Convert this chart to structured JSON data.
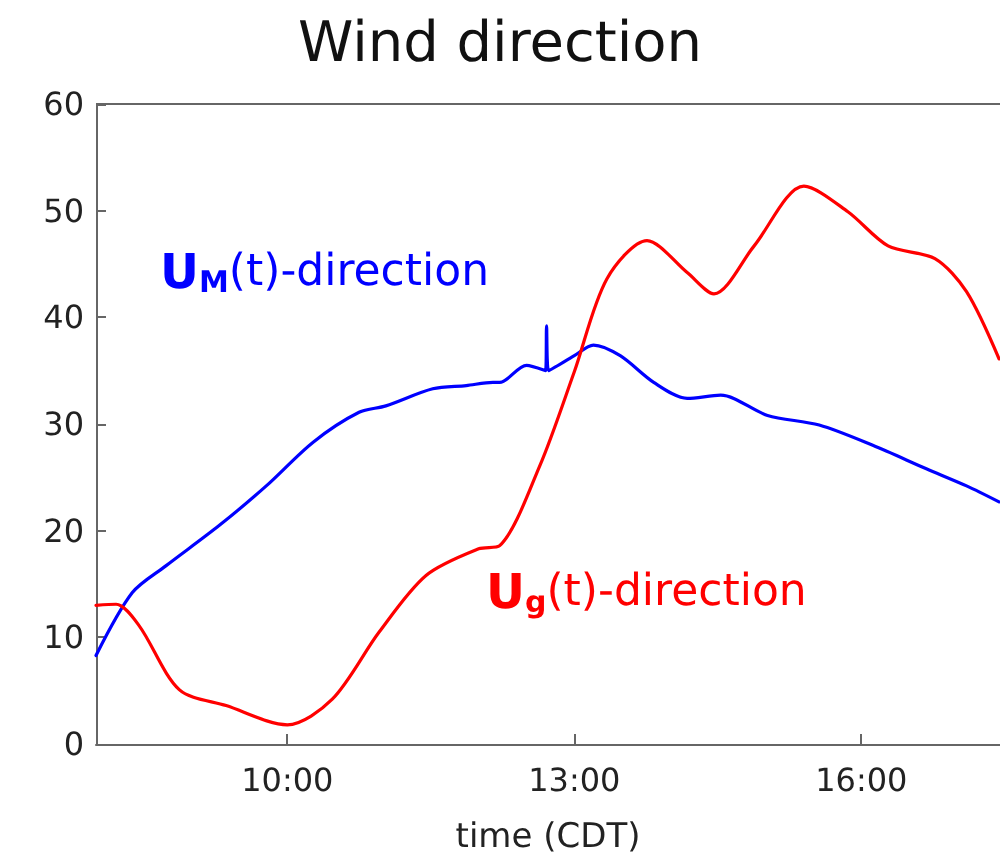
{
  "chart_data": {
    "type": "line",
    "title": "Wind direction",
    "xlabel": "time (CDT)",
    "xlim": [
      8.0,
      17.45
    ],
    "xticks": [
      {
        "value": 10,
        "label": "10:00"
      },
      {
        "value": 13,
        "label": "13:00"
      },
      {
        "value": 16,
        "label": "16:00"
      }
    ],
    "ylim": [
      0,
      60
    ],
    "yticks": [
      0,
      10,
      20,
      30,
      40,
      50,
      60
    ],
    "grid": false,
    "legend": false,
    "marker": "none",
    "line_style": "solid",
    "series": [
      {
        "name": "U$_{M}$(t)-direction",
        "color": "#0000ff",
        "x": [
          8.0,
          8.38,
          8.73,
          9.29,
          9.78,
          10.27,
          10.75,
          11.03,
          11.52,
          11.87,
          12.15,
          12.22,
          12.5,
          12.7,
          12.71,
          12.73,
          13.0,
          13.2,
          13.48,
          13.83,
          14.18,
          14.53,
          15.02,
          15.56,
          16.12,
          16.68,
          17.1,
          17.44
        ],
        "values": [
          8.3,
          14.2,
          16.7,
          20.5,
          24.2,
          28.3,
          31.1,
          31.7,
          33.3,
          33.6,
          33.9,
          33.9,
          35.5,
          35.0,
          39.2,
          35.0,
          36.4,
          37.4,
          36.4,
          33.9,
          32.4,
          32.7,
          30.8,
          29.9,
          28.0,
          25.8,
          24.2,
          22.7
        ]
      },
      {
        "name": "U$_{g}$(t)-direction",
        "color": "#ff0000",
        "x": [
          8.0,
          8.21,
          8.45,
          8.87,
          9.36,
          10.0,
          10.47,
          10.96,
          11.45,
          12.0,
          12.22,
          12.64,
          13.0,
          13.34,
          13.76,
          14.18,
          14.46,
          14.88,
          15.4,
          15.86,
          16.28,
          16.77,
          17.1,
          17.44
        ],
        "values": [
          13.0,
          13.1,
          11.1,
          5.1,
          3.6,
          1.8,
          4.2,
          10.5,
          15.8,
          18.3,
          18.6,
          26.1,
          34.9,
          43.6,
          47.2,
          44.2,
          42.2,
          46.7,
          52.3,
          49.9,
          46.7,
          45.5,
          42.4,
          36.1
        ]
      }
    ]
  }
}
